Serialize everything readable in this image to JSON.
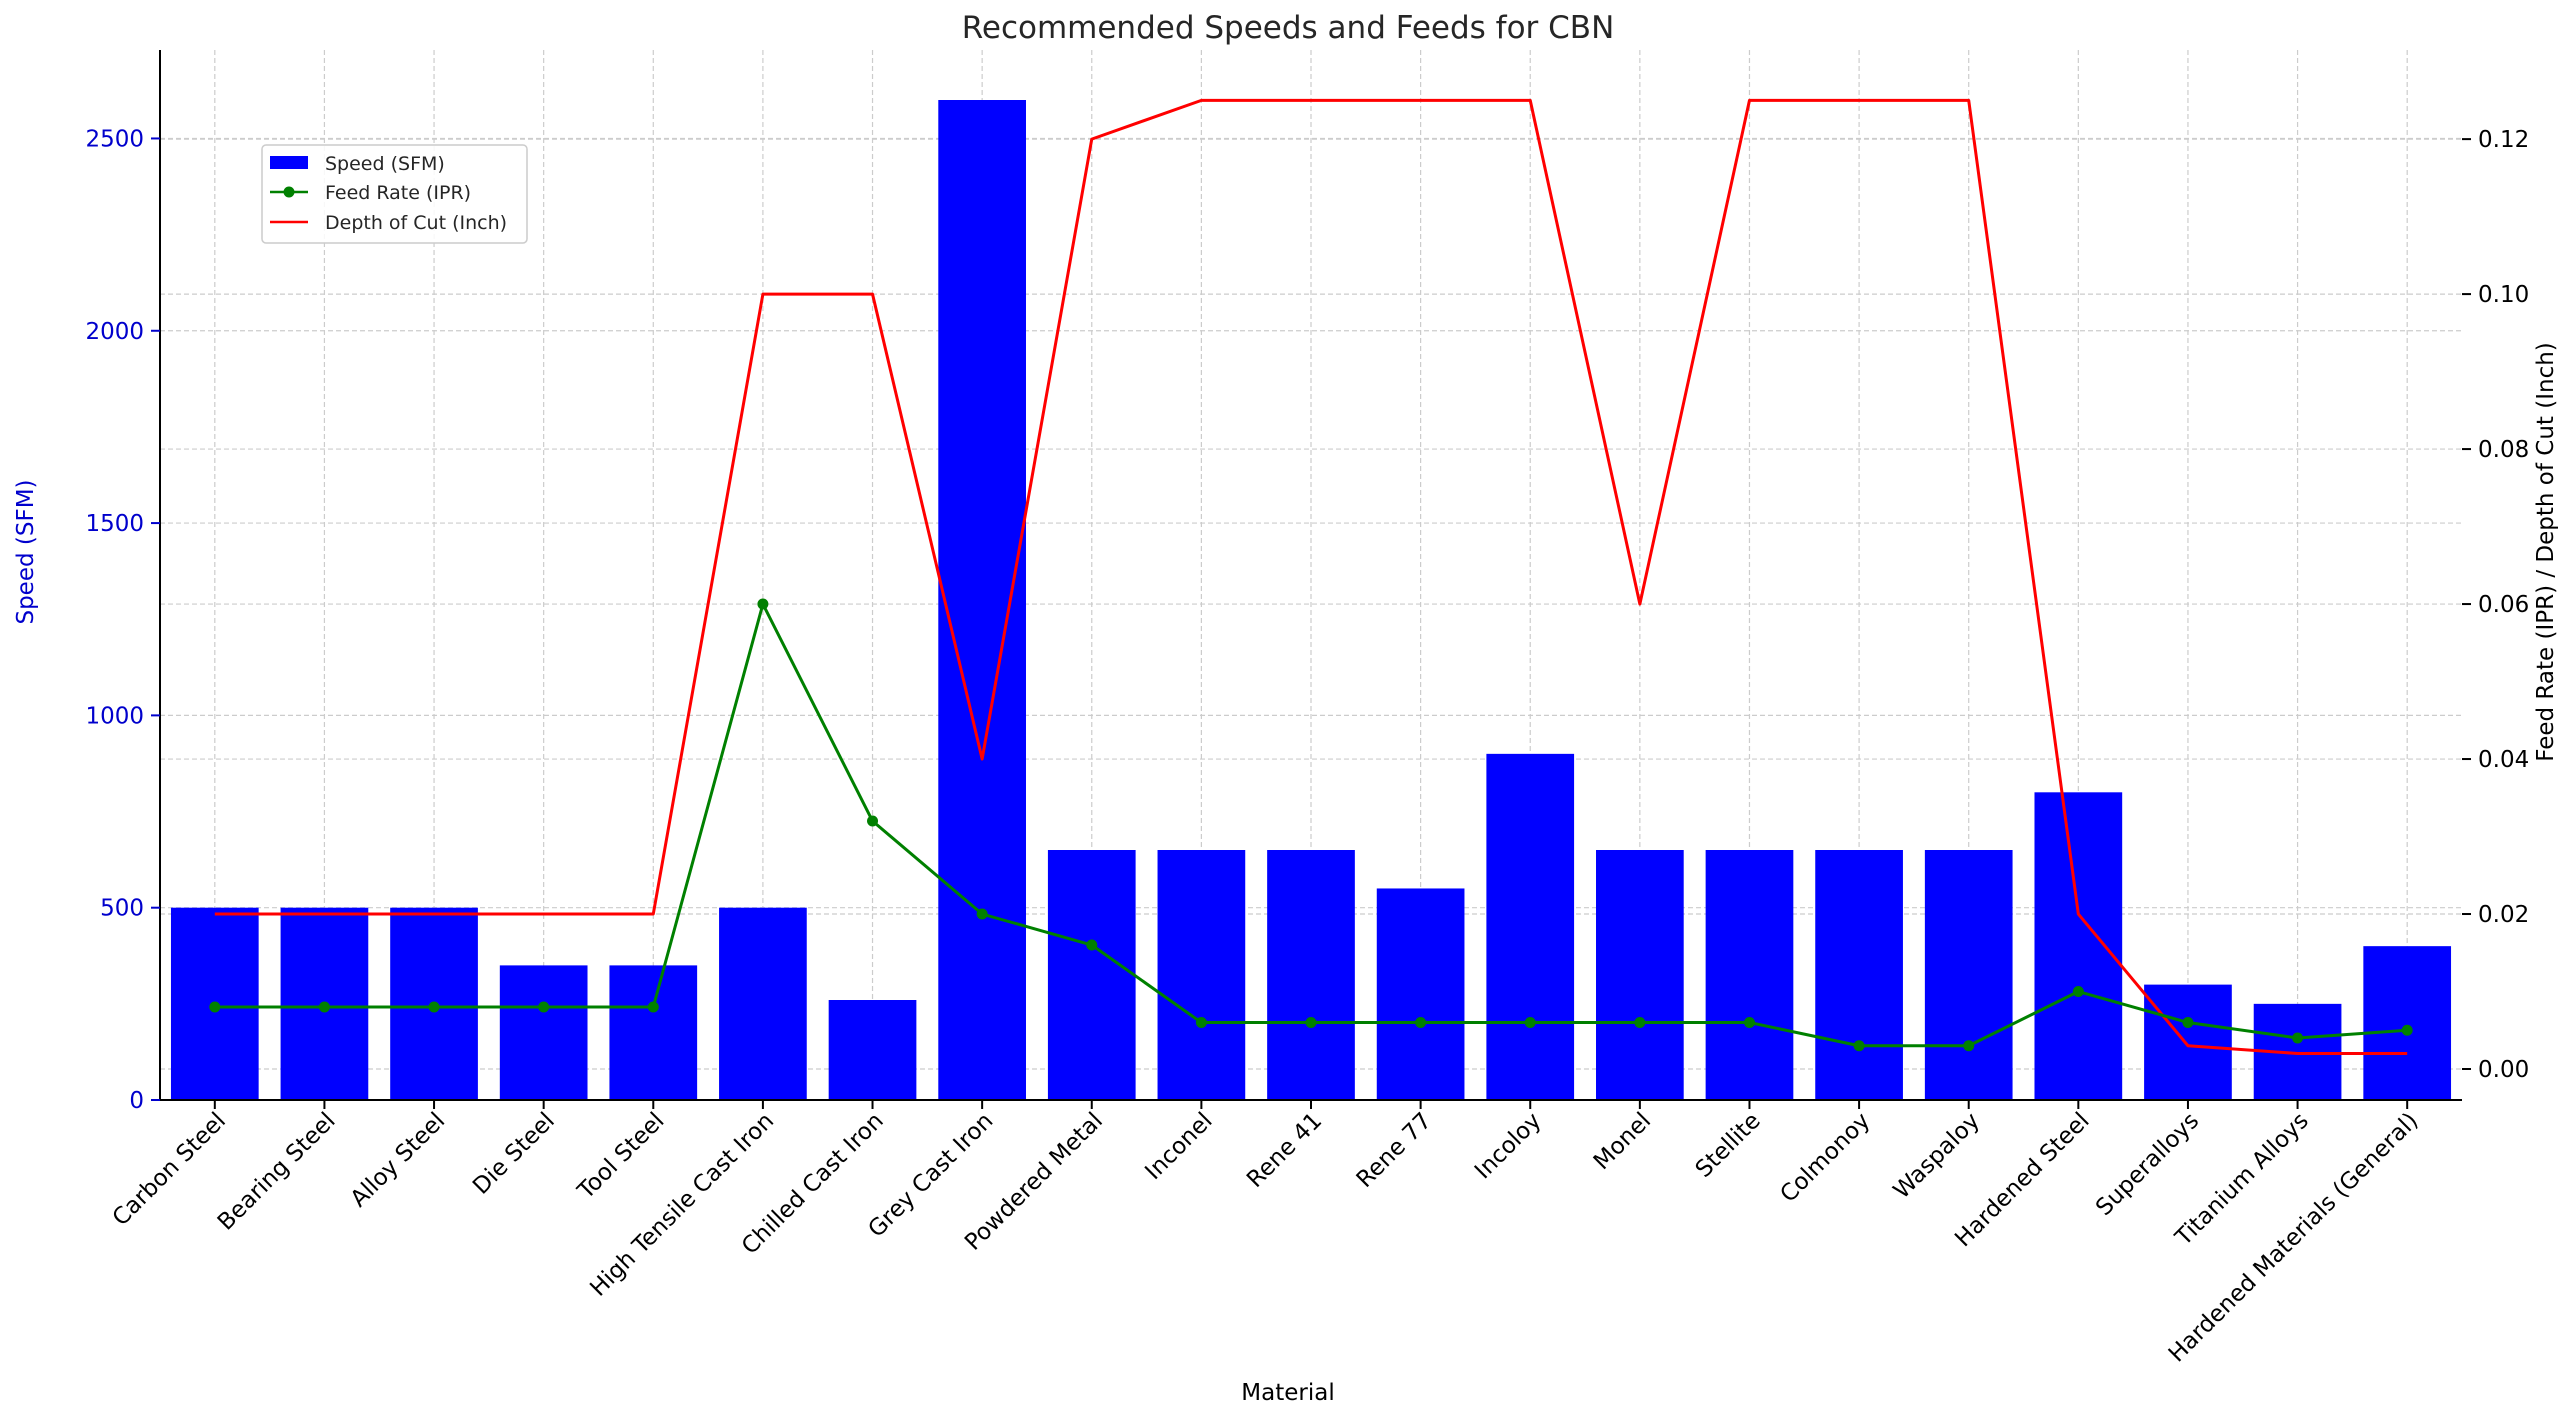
{
  "chart_data": {
    "type": "bar",
    "title": "Recommended Speeds and Feeds for CBN",
    "xlabel": "Material",
    "ylabel": "Speed (SFM)",
    "ylabel_right": "Feed Rate (IPR) / Depth of Cut (Inch)",
    "categories": [
      "Carbon Steel",
      "Bearing Steel",
      "Alloy Steel",
      "Die Steel",
      "Tool Steel",
      "High Tensile Cast Iron",
      "Chilled Cast Iron",
      "Grey Cast Iron",
      "Powdered Metal",
      "Inconel",
      "Rene 41",
      "Rene 77",
      "Incoloy",
      "Monel",
      "Stellite",
      "Colmonoy",
      "Waspaloy",
      "Hardened Steel",
      "Superalloys",
      "Titanium Alloys",
      "Hardened Materials (General)"
    ],
    "ylim": [
      0,
      2730
    ],
    "yticks": [
      0,
      500,
      1000,
      1500,
      2000,
      2500
    ],
    "ylim_right": [
      -0.004,
      0.1315
    ],
    "yticks_right": [
      "0.00",
      "0.02",
      "0.04",
      "0.06",
      "0.08",
      "0.10",
      "0.12"
    ],
    "grid": true,
    "legend_placement": "upper-left",
    "series": [
      {
        "name": "Speed (SFM)",
        "kind": "bar",
        "axis": "left",
        "color": "#0000ff",
        "values": [
          500,
          500,
          500,
          350,
          350,
          500,
          260,
          2600,
          650,
          650,
          650,
          550,
          900,
          650,
          650,
          650,
          650,
          800,
          300,
          250,
          400
        ]
      },
      {
        "name": "Feed Rate (IPR)",
        "kind": "line-marker",
        "axis": "right",
        "color": "#008000",
        "values": [
          0.008,
          0.008,
          0.008,
          0.008,
          0.008,
          0.06,
          0.032,
          0.02,
          0.016,
          0.006,
          0.006,
          0.006,
          0.006,
          0.006,
          0.006,
          0.003,
          0.003,
          0.01,
          0.006,
          0.004,
          0.005
        ]
      },
      {
        "name": "Depth of Cut (Inch)",
        "kind": "line",
        "axis": "right",
        "color": "#ff0000",
        "values": [
          0.02,
          0.02,
          0.02,
          0.02,
          0.02,
          0.1,
          0.1,
          0.04,
          0.12,
          0.125,
          0.125,
          0.125,
          0.125,
          0.06,
          0.125,
          0.125,
          0.125,
          0.02,
          0.003,
          0.002,
          0.002
        ]
      }
    ]
  },
  "colors": {
    "left_axis": "#0000cc",
    "right_axis": "#000000",
    "grid": "#cccccc",
    "axis_line": "#000000"
  }
}
